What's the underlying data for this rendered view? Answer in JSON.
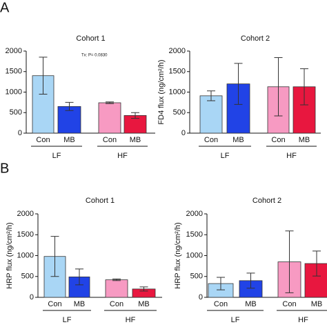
{
  "chart_data": [
    {
      "type": "bar",
      "panel_label": "A",
      "title": "Cohort 1",
      "annotation": "Tx: P= 0.0830",
      "categories": [
        "Con",
        "MB",
        "Con",
        "MB"
      ],
      "groups": [
        "LF",
        "HF"
      ],
      "values": [
        1400,
        650,
        740,
        430
      ],
      "errors": [
        450,
        100,
        20,
        70
      ],
      "colors": [
        "#a9d6f5",
        "#2143e6",
        "#f79ac2",
        "#e8173f"
      ],
      "ylim": [
        0,
        2000
      ],
      "yticks": [
        0,
        500,
        1000,
        1500,
        2000
      ]
    },
    {
      "type": "bar",
      "title": "Cohort 2",
      "ylabel": "FD4 flux (ng/cm²/h)",
      "categories": [
        "Con",
        "MB",
        "Con",
        "MB"
      ],
      "groups": [
        "LF",
        "HF"
      ],
      "values": [
        910,
        1200,
        1130,
        1130
      ],
      "errors": [
        120,
        500,
        710,
        440
      ],
      "colors": [
        "#a9d6f5",
        "#2143e6",
        "#f79ac2",
        "#e8173f"
      ],
      "ylim": [
        0,
        2000
      ],
      "yticks": [
        0,
        500,
        1000,
        1500,
        2000
      ]
    },
    {
      "type": "bar",
      "panel_label": "B",
      "title": "Cohort 1",
      "ylabel": "HRP flux (ng/cm²/h)",
      "categories": [
        "Con",
        "MB",
        "Con",
        "MB"
      ],
      "groups": [
        "LF",
        "HF"
      ],
      "values": [
        980,
        490,
        420,
        200
      ],
      "errors": [
        480,
        190,
        20,
        50
      ],
      "colors": [
        "#a9d6f5",
        "#2143e6",
        "#f79ac2",
        "#e8173f"
      ],
      "ylim": [
        0,
        2000
      ],
      "yticks": [
        0,
        500,
        1000,
        1500,
        2000
      ]
    },
    {
      "type": "bar",
      "title": "Cohort 2",
      "ylabel": "HRP flux (ng/cm²/h)",
      "categories": [
        "Con",
        "MB",
        "Con",
        "MB"
      ],
      "groups": [
        "LF",
        "HF"
      ],
      "values": [
        330,
        400,
        850,
        810
      ],
      "errors": [
        150,
        180,
        740,
        300
      ],
      "colors": [
        "#a9d6f5",
        "#2143e6",
        "#f79ac2",
        "#e8173f"
      ],
      "ylim": [
        0,
        2000
      ],
      "yticks": [
        0,
        500,
        1000,
        1500,
        2000
      ]
    }
  ]
}
